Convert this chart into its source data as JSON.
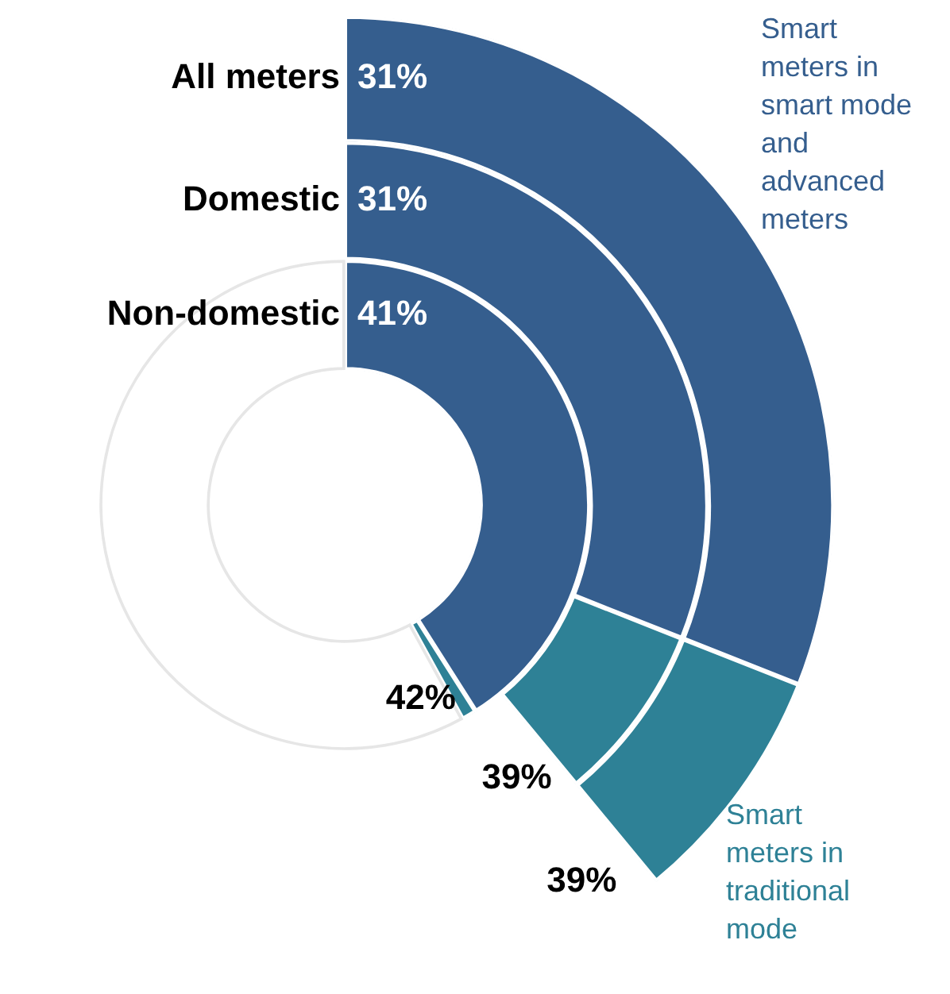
{
  "chart_data": {
    "type": "donut",
    "categories": [
      "Smart meters in smart mode and advanced meters",
      "Smart meters in traditional mode"
    ],
    "colors": [
      "#355e8e",
      "#2e8196"
    ],
    "series": [
      {
        "name": "All meters",
        "values": [
          31,
          8
        ],
        "value_labels": [
          "31%",
          null
        ]
      },
      {
        "name": "Domestic",
        "values": [
          31,
          8
        ],
        "value_labels": [
          "31%",
          null
        ]
      },
      {
        "name": "Non-domestic",
        "values": [
          41,
          1
        ],
        "value_labels": [
          "41%",
          null
        ]
      }
    ],
    "annotations": [
      "39%",
      "39%",
      "42%"
    ]
  }
}
